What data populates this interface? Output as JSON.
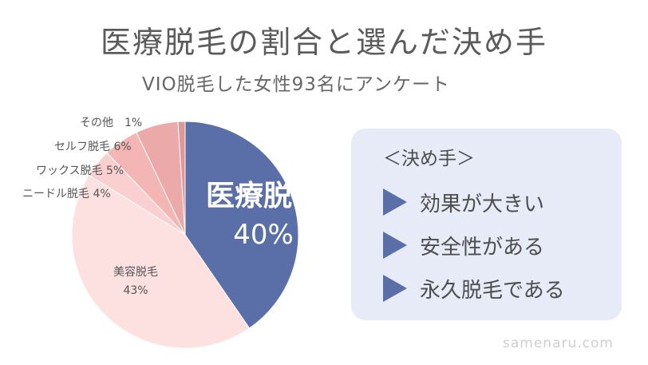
{
  "header": {
    "title": "医療脱毛の割合と選んだ決め手",
    "subtitle": "VIO脱毛した女性93名にアンケート"
  },
  "chart_data": {
    "type": "pie",
    "title": "医療脱毛の割合と選んだ決め手",
    "subtitle": "VIO脱毛した女性93名にアンケート",
    "slices": [
      {
        "label": "医療脱毛",
        "value": 40,
        "display": "40%",
        "color": "#5a6ea8"
      },
      {
        "label": "美容脱毛",
        "value": 43,
        "display": "43%",
        "color": "#fde0e0"
      },
      {
        "label": "ニードル脱毛",
        "value": 4,
        "display": "4%",
        "color": "#f9cfcf"
      },
      {
        "label": "ワックス脱毛",
        "value": 5,
        "display": "5%",
        "color": "#f4b5b5"
      },
      {
        "label": "セルフ脱毛",
        "value": 6,
        "display": "6%",
        "color": "#eba9a9"
      },
      {
        "label": "その他",
        "value": 1,
        "display": "1%",
        "color": "#de9898"
      }
    ],
    "start": "12 o'clock, clockwise"
  },
  "labels": {
    "medical_name": "医療脱毛",
    "medical_pct": "40%",
    "beauty_name": "美容脱毛",
    "beauty_pct": "43%",
    "needle": "ニードル脱毛 4%",
    "wax": "ワックス脱毛 5%",
    "self": "セルフ脱毛 6%",
    "other": "その他　1%"
  },
  "panel": {
    "title": "＜決め手＞",
    "items": [
      "効果が大きい",
      "安全性がある",
      "永久脱毛である"
    ]
  },
  "footer": "samenaru.com",
  "colors": {
    "accent": "#5a6ea8",
    "panel_bg": "#e6ebf7"
  }
}
